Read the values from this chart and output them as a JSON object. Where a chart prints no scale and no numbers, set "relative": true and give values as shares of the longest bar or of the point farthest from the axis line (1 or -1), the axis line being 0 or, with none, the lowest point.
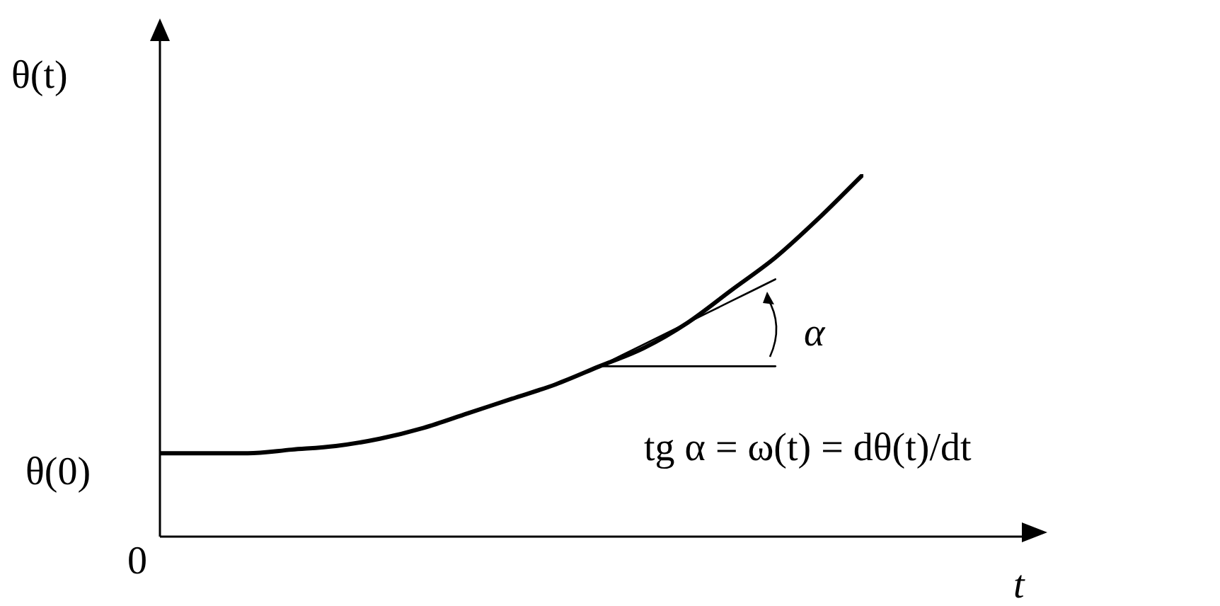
{
  "chart_data": {
    "type": "line",
    "relative": true,
    "xlabel": "t",
    "ylabel": "θ(t)",
    "categories": [
      null,
      null,
      null,
      null,
      null,
      null,
      null,
      null,
      null,
      null,
      null,
      null,
      null,
      null,
      null,
      null,
      null
    ],
    "series": [
      {
        "color": "#000000",
        "values": [
          0.23,
          0.23,
          0.23,
          0.24,
          0.25,
          0.27,
          0.3,
          0.34,
          0.38,
          0.42,
          0.47,
          0.52,
          0.59,
          0.68,
          0.77,
          0.88,
          1
        ]
      },
      {
        "color": "#000000",
        "values": [
          null,
          null,
          null,
          null,
          null,
          null,
          null,
          null,
          null,
          null,
          0.47,
          0.53,
          0.59,
          0.65,
          0.71,
          null,
          null
        ]
      },
      {
        "color": "#000000",
        "values": [
          null,
          null,
          null,
          null,
          null,
          null,
          null,
          null,
          null,
          null,
          0.47,
          0.47,
          0.47,
          0.47,
          0.47,
          null,
          null
        ]
      }
    ],
    "annotations": [
      "θ(0)",
      "0",
      "α",
      "tg α = ω(t) = dθ(t)/dt"
    ]
  }
}
